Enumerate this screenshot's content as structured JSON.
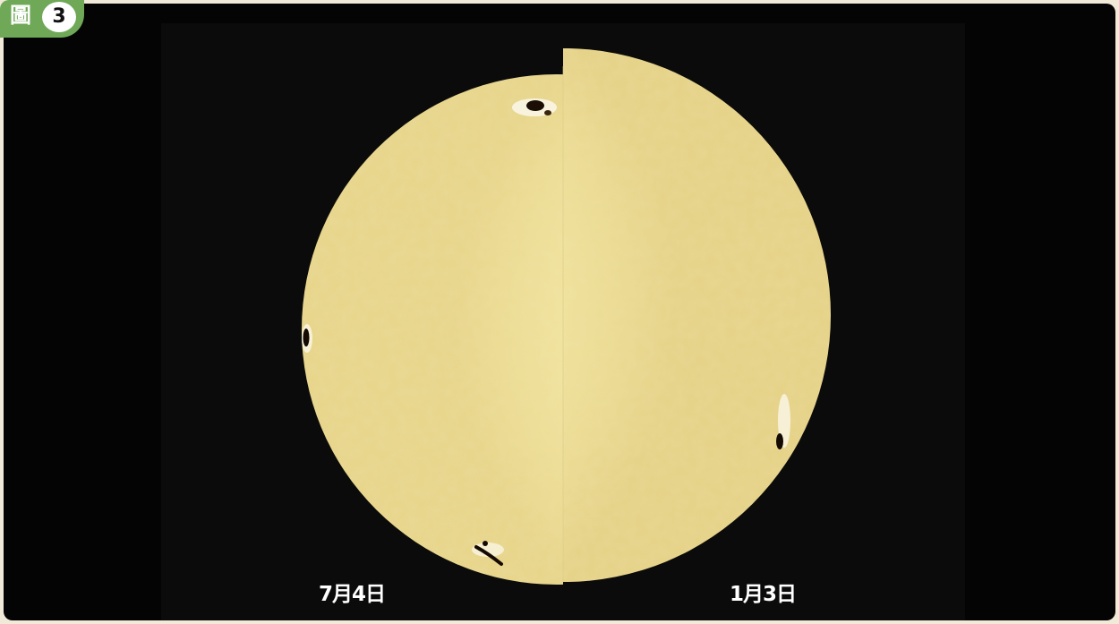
{
  "figure": {
    "label_char": "圖",
    "number": "3"
  },
  "image": {
    "left_label": "7月4日",
    "right_label": "1月3日"
  },
  "colors": {
    "badge": "#6fa857",
    "background": "#040404",
    "sun_disk": "#f4eaa2"
  }
}
